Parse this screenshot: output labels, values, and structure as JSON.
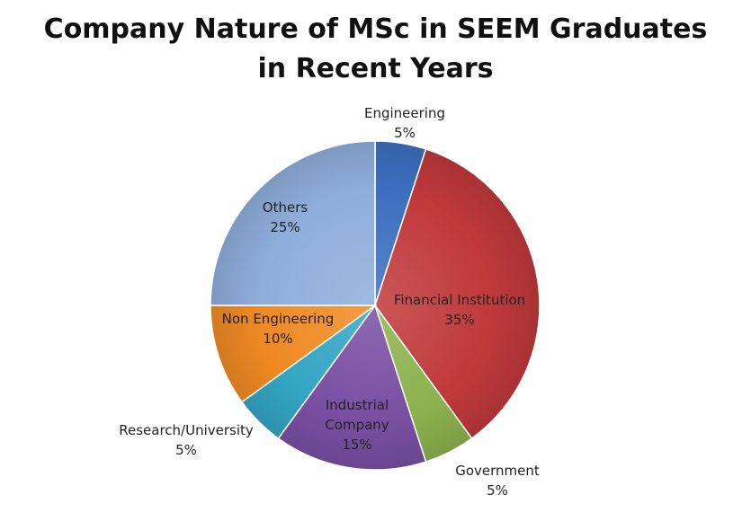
{
  "chart_data": {
    "type": "pie",
    "title_lines": [
      "Company Nature of MSc in SEEM Graduates",
      "in Recent Years"
    ],
    "slices": [
      {
        "label": "Engineering",
        "value": 5,
        "value_label": "5%",
        "color": "#3c6fc0"
      },
      {
        "label": "Financial Institution",
        "value": 35,
        "value_label": "35%",
        "color": "#c0393b"
      },
      {
        "label": "Government",
        "value": 5,
        "value_label": "5%",
        "color": "#8cb24e"
      },
      {
        "label": "Industrial Company",
        "value": 15,
        "value_label": "15%",
        "color": "#7a4fa3",
        "label_lines": [
          "Industrial",
          "Company"
        ]
      },
      {
        "label": "Research/University",
        "value": 5,
        "value_label": "5%",
        "color": "#33a5c3"
      },
      {
        "label": "Non Engineering",
        "value": 10,
        "value_label": "10%",
        "color": "#f08a24"
      },
      {
        "label": "Others",
        "value": 25,
        "value_label": "25%",
        "color": "#8eaedb"
      }
    ],
    "legend": "none"
  }
}
